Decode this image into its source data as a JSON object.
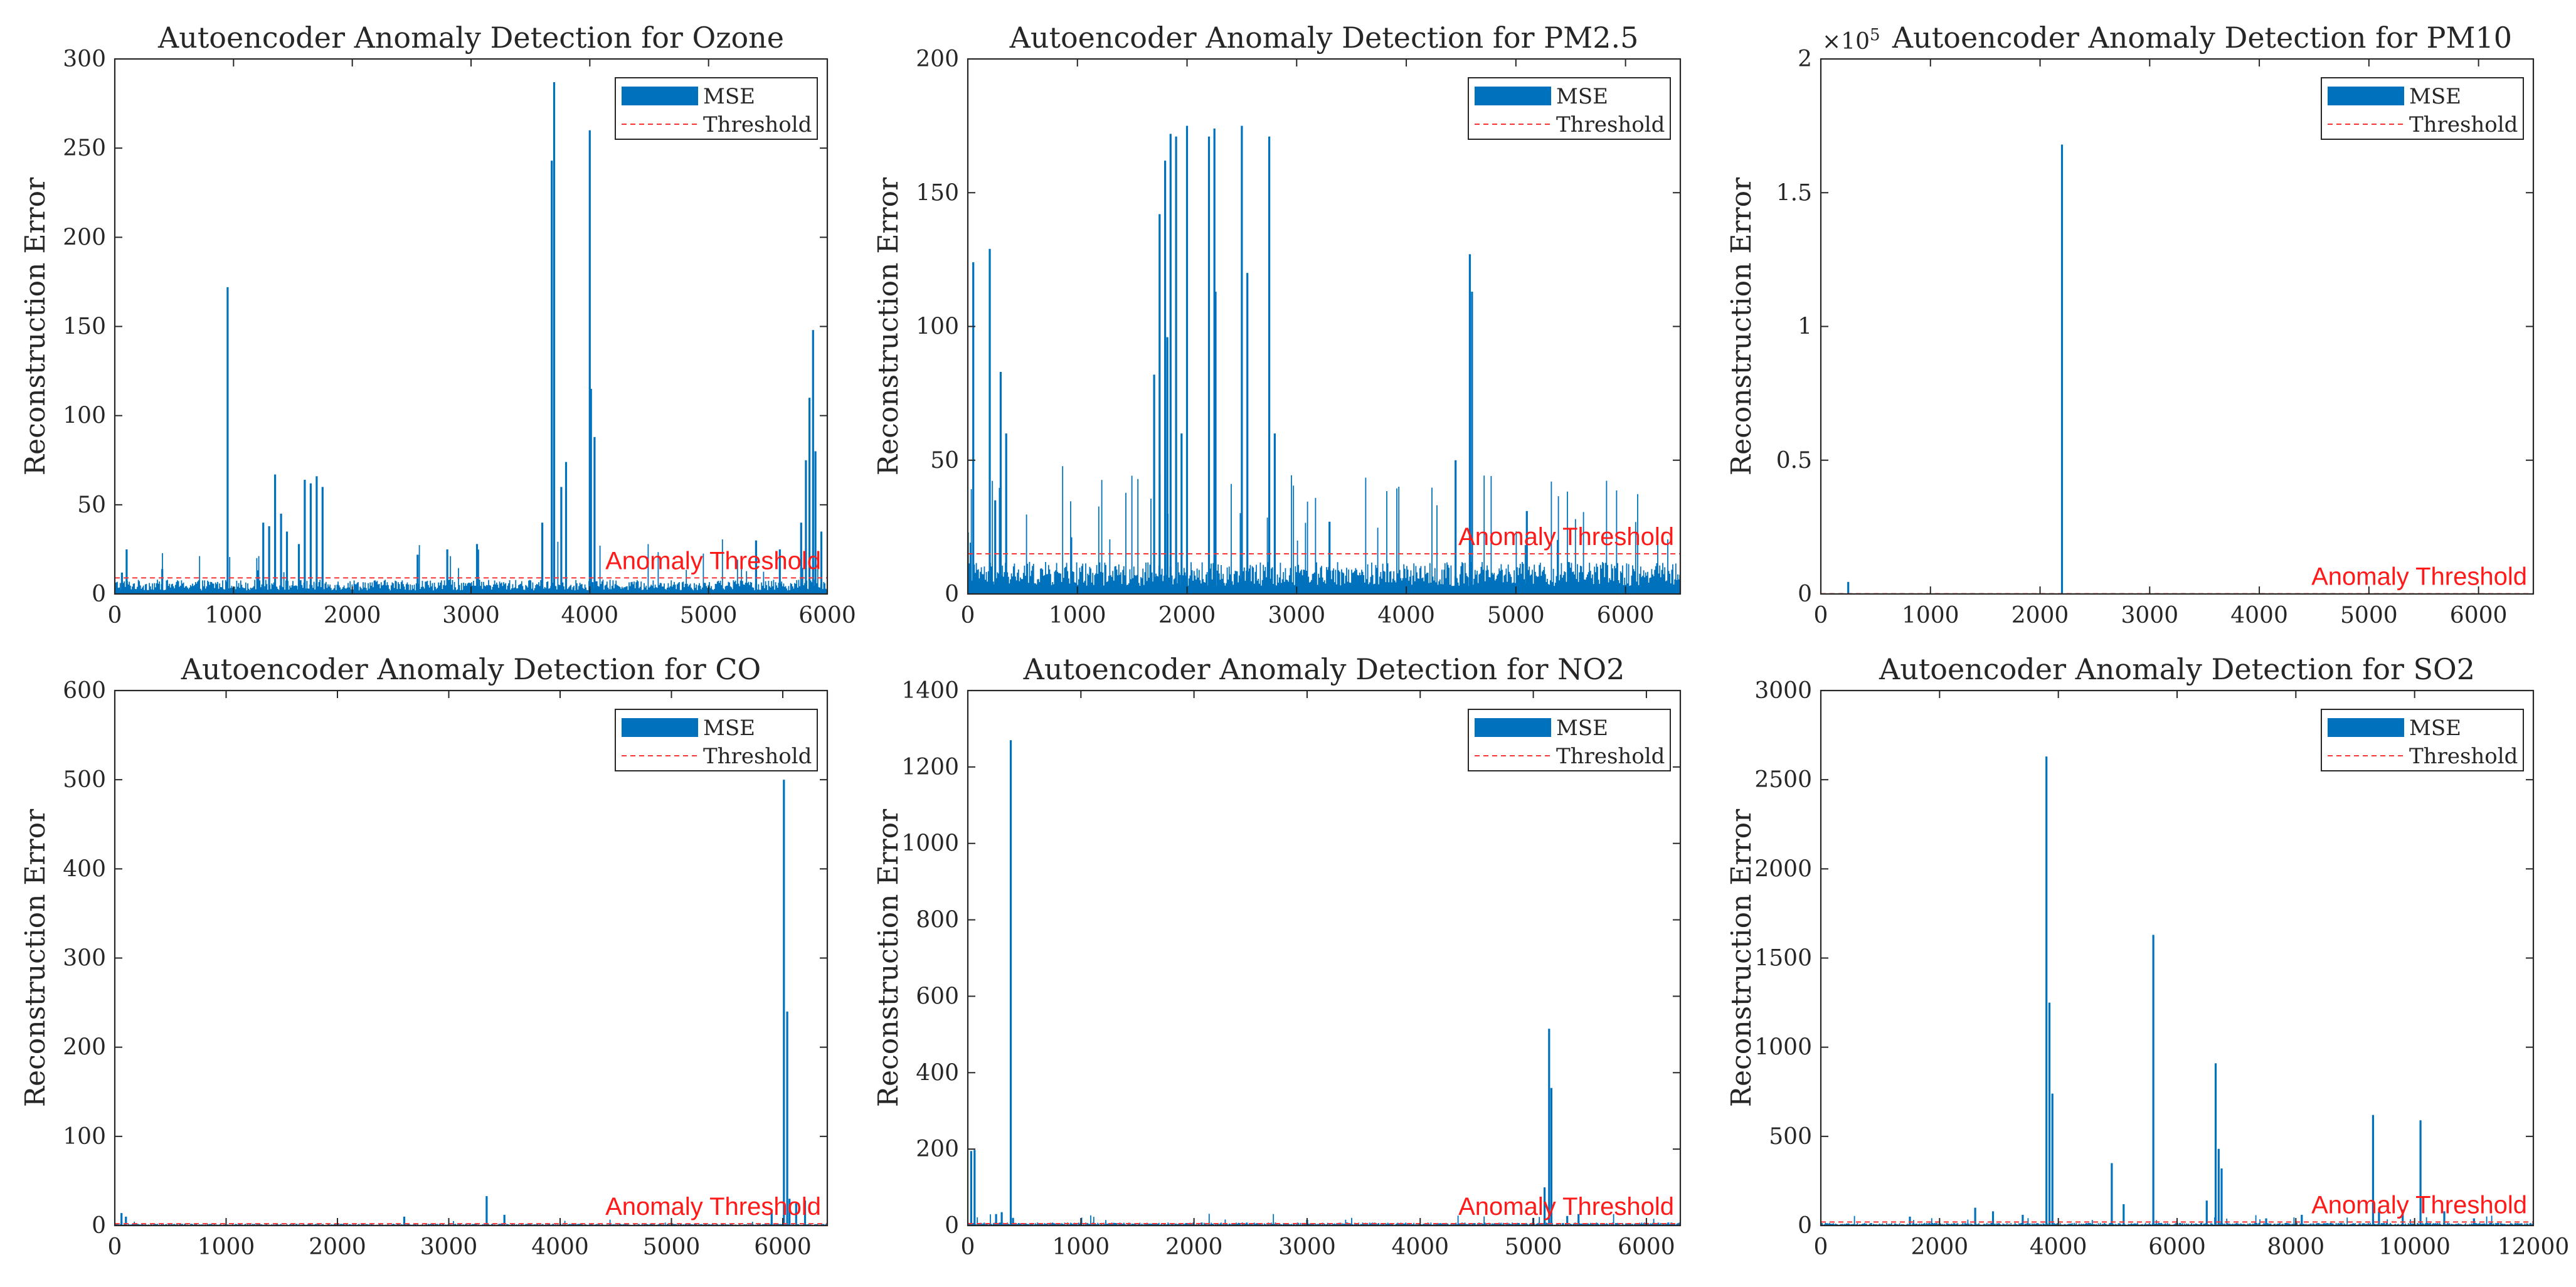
{
  "colors": {
    "mse": "#0072BD",
    "threshold": "#ff3333",
    "axes": "#262626",
    "annotation": "#ff1a1a"
  },
  "chart_data": [
    {
      "type": "bar",
      "title": "Autoencoder Anomaly Detection for Ozone",
      "xlabel": "",
      "ylabel": "Reconstruction Error",
      "xlim": [
        0,
        6000
      ],
      "ylim": [
        0,
        300
      ],
      "xticks": [
        0,
        1000,
        2000,
        3000,
        4000,
        5000,
        6000
      ],
      "xtick_labels": [
        "0",
        "1000",
        "2000",
        "3000",
        "4000",
        "5000",
        "6000"
      ],
      "yticks": [
        0,
        50,
        100,
        150,
        200,
        250,
        300
      ],
      "ytick_labels": [
        "0",
        "50",
        "100",
        "150",
        "200",
        "250",
        "300"
      ],
      "y_exponent": "",
      "threshold": 9,
      "legend": [
        "MSE",
        "Threshold"
      ],
      "annotation": "Anomaly Threshold",
      "n_samples": 6000,
      "baseline": 8,
      "peak_rate": 0.035,
      "spikes": [
        [
          60,
          12
        ],
        [
          100,
          25
        ],
        [
          400,
          14
        ],
        [
          950,
          172
        ],
        [
          1250,
          40
        ],
        [
          1300,
          38
        ],
        [
          1350,
          67
        ],
        [
          1400,
          45
        ],
        [
          1450,
          35
        ],
        [
          1550,
          28
        ],
        [
          1600,
          64
        ],
        [
          1650,
          62
        ],
        [
          1700,
          66
        ],
        [
          1750,
          60
        ],
        [
          2550,
          22
        ],
        [
          2800,
          25
        ],
        [
          3050,
          28
        ],
        [
          3600,
          40
        ],
        [
          3680,
          243
        ],
        [
          3700,
          287
        ],
        [
          3760,
          60
        ],
        [
          3800,
          74
        ],
        [
          4000,
          260
        ],
        [
          4010,
          115
        ],
        [
          4040,
          88
        ],
        [
          5400,
          30
        ],
        [
          5600,
          25
        ],
        [
          5780,
          40
        ],
        [
          5820,
          75
        ],
        [
          5850,
          110
        ],
        [
          5880,
          148
        ],
        [
          5900,
          80
        ],
        [
          5950,
          35
        ]
      ]
    },
    {
      "type": "bar",
      "title": "Autoencoder Anomaly Detection for PM2.5",
      "xlabel": "",
      "ylabel": "Reconstruction Error",
      "xlim": [
        0,
        6500
      ],
      "ylim": [
        0,
        200
      ],
      "xticks": [
        0,
        1000,
        2000,
        3000,
        4000,
        5000,
        6000
      ],
      "xtick_labels": [
        "0",
        "1000",
        "2000",
        "3000",
        "4000",
        "5000",
        "6000"
      ],
      "yticks": [
        0,
        50,
        100,
        150,
        200
      ],
      "ytick_labels": [
        "0",
        "50",
        "100",
        "150",
        "200"
      ],
      "y_exponent": "",
      "threshold": 15,
      "legend": [
        "MSE",
        "Threshold"
      ],
      "annotation": "Anomaly Threshold",
      "n_samples": 6500,
      "baseline": 12,
      "peak_rate": 0.08,
      "spikes": [
        [
          50,
          124
        ],
        [
          200,
          129
        ],
        [
          250,
          35
        ],
        [
          300,
          83
        ],
        [
          350,
          60
        ],
        [
          1700,
          82
        ],
        [
          1750,
          142
        ],
        [
          1800,
          162
        ],
        [
          1820,
          96
        ],
        [
          1850,
          172
        ],
        [
          1900,
          171
        ],
        [
          1950,
          60
        ],
        [
          2000,
          175
        ],
        [
          2200,
          171
        ],
        [
          2250,
          174
        ],
        [
          2260,
          113
        ],
        [
          2500,
          175
        ],
        [
          2550,
          120
        ],
        [
          2750,
          171
        ],
        [
          2800,
          60
        ],
        [
          3300,
          27
        ],
        [
          4450,
          50
        ],
        [
          4580,
          127
        ],
        [
          4600,
          113
        ],
        [
          5100,
          31
        ]
      ]
    },
    {
      "type": "bar",
      "title": "Autoencoder Anomaly Detection for PM10",
      "xlabel": "",
      "ylabel": "Reconstruction Error",
      "xlim": [
        0,
        6500
      ],
      "ylim": [
        0,
        200000
      ],
      "xticks": [
        0,
        1000,
        2000,
        3000,
        4000,
        5000,
        6000
      ],
      "xtick_labels": [
        "0",
        "1000",
        "2000",
        "3000",
        "4000",
        "5000",
        "6000"
      ],
      "yticks": [
        0,
        50000,
        100000,
        150000,
        200000
      ],
      "ytick_labels": [
        "0",
        "0.5",
        "1",
        "1.5",
        "2"
      ],
      "y_exponent": "5",
      "threshold": 100,
      "legend": [
        "MSE",
        "Threshold"
      ],
      "annotation": "Anomaly Threshold",
      "n_samples": 6500,
      "baseline": 150,
      "peak_rate": 0.0,
      "spikes": [
        [
          250,
          4500
        ],
        [
          2200,
          168000
        ]
      ]
    },
    {
      "type": "bar",
      "title": "Autoencoder Anomaly Detection for CO",
      "xlabel": "",
      "ylabel": "Reconstruction Error",
      "xlim": [
        0,
        6400
      ],
      "ylim": [
        0,
        600
      ],
      "xticks": [
        0,
        1000,
        2000,
        3000,
        4000,
        5000,
        6000
      ],
      "xtick_labels": [
        "0",
        "1000",
        "2000",
        "3000",
        "4000",
        "5000",
        "6000"
      ],
      "yticks": [
        0,
        100,
        200,
        300,
        400,
        500,
        600
      ],
      "ytick_labels": [
        "0",
        "100",
        "200",
        "300",
        "400",
        "500",
        "600"
      ],
      "y_exponent": "",
      "threshold": 2,
      "legend": [
        "MSE",
        "Threshold"
      ],
      "annotation": "Anomaly Threshold",
      "n_samples": 6400,
      "baseline": 2,
      "peak_rate": 0.01,
      "spikes": [
        [
          60,
          14
        ],
        [
          100,
          10
        ],
        [
          2600,
          10
        ],
        [
          3340,
          33
        ],
        [
          3500,
          12
        ],
        [
          5900,
          18
        ],
        [
          6010,
          500
        ],
        [
          6040,
          240
        ],
        [
          6060,
          30
        ],
        [
          6120,
          25
        ],
        [
          6200,
          28
        ]
      ]
    },
    {
      "type": "bar",
      "title": "Autoencoder Anomaly Detection for NO2",
      "xlabel": "",
      "ylabel": "Reconstruction Error",
      "xlim": [
        0,
        6300
      ],
      "ylim": [
        0,
        1400
      ],
      "xticks": [
        0,
        1000,
        2000,
        3000,
        4000,
        5000,
        6000
      ],
      "xtick_labels": [
        "0",
        "1000",
        "2000",
        "3000",
        "4000",
        "5000",
        "6000"
      ],
      "yticks": [
        0,
        200,
        400,
        600,
        800,
        1000,
        1200,
        1400
      ],
      "ytick_labels": [
        "0",
        "200",
        "400",
        "600",
        "800",
        "1000",
        "1200",
        "1400"
      ],
      "y_exponent": "",
      "threshold": 5,
      "legend": [
        "MSE",
        "Threshold"
      ],
      "annotation": "Anomaly Threshold",
      "n_samples": 6300,
      "baseline": 8,
      "peak_rate": 0.02,
      "spikes": [
        [
          30,
          195
        ],
        [
          60,
          198
        ],
        [
          250,
          30
        ],
        [
          300,
          35
        ],
        [
          380,
          1270
        ],
        [
          400,
          20
        ],
        [
          3000,
          15
        ],
        [
          5000,
          20
        ],
        [
          5100,
          100
        ],
        [
          5140,
          515
        ],
        [
          5160,
          360
        ],
        [
          5300,
          25
        ],
        [
          5400,
          30
        ]
      ]
    },
    {
      "type": "bar",
      "title": "Autoencoder Anomaly Detection for SO2",
      "xlabel": "",
      "ylabel": "Reconstruction Error",
      "xlim": [
        0,
        12000
      ],
      "ylim": [
        0,
        3000
      ],
      "xticks": [
        0,
        2000,
        4000,
        6000,
        8000,
        10000,
        12000
      ],
      "xtick_labels": [
        "0",
        "2000",
        "4000",
        "6000",
        "8000",
        "10000",
        "12000"
      ],
      "yticks": [
        0,
        500,
        1000,
        1500,
        2000,
        2500,
        3000
      ],
      "ytick_labels": [
        "0",
        "500",
        "1000",
        "1500",
        "2000",
        "2500",
        "3000"
      ],
      "y_exponent": "",
      "threshold": 20,
      "legend": [
        "MSE",
        "Threshold"
      ],
      "annotation": "Anomaly Threshold",
      "n_samples": 12000,
      "baseline": 15,
      "peak_rate": 0.02,
      "spikes": [
        [
          1500,
          50
        ],
        [
          2600,
          100
        ],
        [
          2900,
          80
        ],
        [
          3400,
          60
        ],
        [
          3800,
          2630
        ],
        [
          3850,
          1250
        ],
        [
          3900,
          740
        ],
        [
          4900,
          350
        ],
        [
          5100,
          120
        ],
        [
          5600,
          1630
        ],
        [
          6500,
          140
        ],
        [
          6650,
          910
        ],
        [
          6700,
          430
        ],
        [
          6750,
          320
        ],
        [
          7500,
          40
        ],
        [
          8100,
          60
        ],
        [
          9300,
          620
        ],
        [
          9400,
          80
        ],
        [
          9800,
          90
        ],
        [
          10100,
          590
        ],
        [
          10500,
          80
        ],
        [
          11000,
          40
        ]
      ]
    }
  ]
}
